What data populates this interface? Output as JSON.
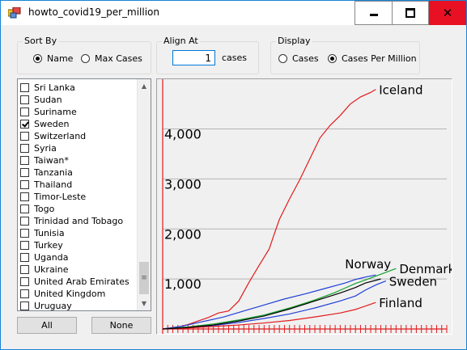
{
  "window": {
    "title": "howto_covid19_per_million",
    "controls": {
      "minimize": "minimize",
      "maximize": "maximize",
      "close": "close"
    }
  },
  "sort_by": {
    "label": "Sort By",
    "options": [
      {
        "label": "Name",
        "selected": true
      },
      {
        "label": "Max Cases",
        "selected": false
      }
    ]
  },
  "align_at": {
    "label": "Align At",
    "value": "1",
    "unit": "cases"
  },
  "display": {
    "label": "Display",
    "options": [
      {
        "label": "Cases",
        "selected": false
      },
      {
        "label": "Cases Per Million",
        "selected": true
      }
    ]
  },
  "country_list": {
    "items": [
      {
        "name": "Sri Lanka",
        "checked": false
      },
      {
        "name": "Sudan",
        "checked": false
      },
      {
        "name": "Suriname",
        "checked": false
      },
      {
        "name": "Sweden",
        "checked": true
      },
      {
        "name": "Switzerland",
        "checked": false
      },
      {
        "name": "Syria",
        "checked": false
      },
      {
        "name": "Taiwan*",
        "checked": false
      },
      {
        "name": "Tanzania",
        "checked": false
      },
      {
        "name": "Thailand",
        "checked": false
      },
      {
        "name": "Timor-Leste",
        "checked": false
      },
      {
        "name": "Togo",
        "checked": false
      },
      {
        "name": "Trinidad and Tobago",
        "checked": false
      },
      {
        "name": "Tunisia",
        "checked": false
      },
      {
        "name": "Turkey",
        "checked": false
      },
      {
        "name": "Uganda",
        "checked": false
      },
      {
        "name": "Ukraine",
        "checked": false
      },
      {
        "name": "United Arab Emirates",
        "checked": false
      },
      {
        "name": "United Kingdom",
        "checked": false
      },
      {
        "name": "Uruguay",
        "checked": false
      }
    ],
    "scroll": {
      "up": "▲",
      "down": "▼",
      "thumb_grip": "≡"
    }
  },
  "buttons": {
    "all": "All",
    "none": "None"
  },
  "chart_data": {
    "type": "line",
    "ylim": [
      0,
      4800
    ],
    "x_count": 57,
    "yticks": [
      {
        "value": 1000,
        "label": "1,000"
      },
      {
        "value": 2000,
        "label": "2,000"
      },
      {
        "value": 3000,
        "label": "3,000"
      },
      {
        "value": 4000,
        "label": "4,000"
      }
    ],
    "series": [
      {
        "name": "Iceland",
        "color": "#e31a1c",
        "x": [
          0,
          3,
          5,
          7,
          9,
          11,
          13,
          15,
          17,
          19,
          21,
          22,
          23,
          25,
          27,
          29,
          31,
          33,
          35,
          37,
          39,
          41,
          42
        ],
        "y": [
          0,
          40,
          90,
          160,
          230,
          320,
          360,
          560,
          930,
          1270,
          1600,
          1900,
          2190,
          2600,
          2980,
          3400,
          3820,
          4070,
          4270,
          4500,
          4640,
          4730,
          4790
        ]
      },
      {
        "name": "Norway",
        "color": "#1f3fd8",
        "x": [
          0,
          4,
          8,
          12,
          16,
          20,
          24,
          28,
          32,
          36,
          38,
          40,
          42
        ],
        "y": [
          0,
          60,
          150,
          240,
          360,
          480,
          600,
          700,
          810,
          920,
          990,
          1040,
          1080
        ]
      },
      {
        "name": "Denmark",
        "color": "#12a12b",
        "x": [
          0,
          5,
          10,
          15,
          20,
          25,
          30,
          34,
          36,
          38,
          40,
          46
        ],
        "y": [
          0,
          40,
          100,
          180,
          280,
          420,
          580,
          730,
          820,
          910,
          980,
          1210
        ]
      },
      {
        "name": "Sweden",
        "color": "#1f3fd8",
        "x": [
          0,
          5,
          10,
          15,
          20,
          25,
          30,
          35,
          38,
          40,
          42,
          44
        ],
        "y": [
          0,
          30,
          70,
          130,
          210,
          300,
          420,
          560,
          660,
          780,
          880,
          960
        ]
      },
      {
        "name": "Finland",
        "color": "#e31a1c",
        "x": [
          0,
          5,
          10,
          15,
          20,
          25,
          30,
          35,
          38,
          40,
          42
        ],
        "y": [
          0,
          20,
          50,
          80,
          120,
          170,
          240,
          320,
          390,
          460,
          530
        ]
      },
      {
        "name": "",
        "color": "#000000",
        "x": [
          0,
          5,
          10,
          15,
          20,
          25,
          30,
          35,
          38,
          40,
          43
        ],
        "y": [
          0,
          30,
          80,
          160,
          260,
          400,
          560,
          720,
          830,
          920,
          1000
        ]
      }
    ]
  }
}
